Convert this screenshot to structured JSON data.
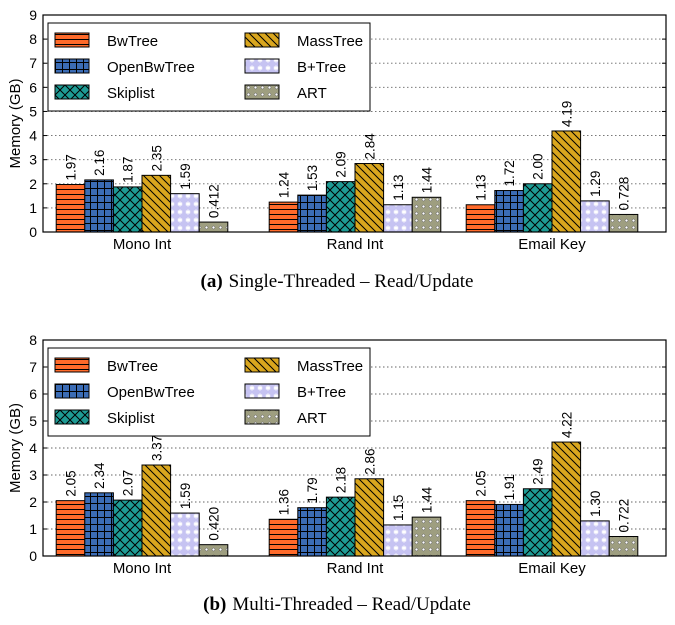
{
  "chart_data": [
    {
      "type": "bar",
      "caption_label": "(a)",
      "caption_text": "Single-Threaded – Read/Update",
      "ylabel": "Memory (GB)",
      "xlabel": "",
      "ylim": [
        0,
        9
      ],
      "yticks": [
        0,
        1,
        2,
        3,
        4,
        5,
        6,
        7,
        8,
        9
      ],
      "grid": "horizontal-dotted",
      "legend_placement": "top-left",
      "categories": [
        "Mono Int",
        "Rand Int",
        "Email Key"
      ],
      "series": [
        {
          "name": "BwTree",
          "color": "#ff6a2a",
          "pattern": "hlines",
          "values": [
            1.97,
            1.24,
            1.13
          ],
          "labels": [
            "1.97",
            "1.24",
            "1.13"
          ]
        },
        {
          "name": "OpenBwTree",
          "color": "#3b6cb5",
          "pattern": "grid",
          "values": [
            2.16,
            1.53,
            1.72
          ],
          "labels": [
            "2.16",
            "1.53",
            "1.72"
          ]
        },
        {
          "name": "Skiplist",
          "color": "#1e9b94",
          "pattern": "cross",
          "values": [
            1.87,
            2.09,
            2.0
          ],
          "labels": [
            "1.87",
            "2.09",
            "2.00"
          ]
        },
        {
          "name": "MassTree",
          "color": "#d9a61e",
          "pattern": "diag",
          "values": [
            2.35,
            2.84,
            4.19
          ],
          "labels": [
            "2.35",
            "2.84",
            "4.19"
          ]
        },
        {
          "name": "B+Tree",
          "color": "#c6c3f2",
          "pattern": "stars",
          "values": [
            1.59,
            1.13,
            1.29
          ],
          "labels": [
            "1.59",
            "1.13",
            "1.29"
          ]
        },
        {
          "name": "ART",
          "color": "#9e9e80",
          "pattern": "dots",
          "values": [
            0.412,
            1.44,
            0.728
          ],
          "labels": [
            "0.412",
            "1.44",
            "0.728"
          ]
        }
      ]
    },
    {
      "type": "bar",
      "caption_label": "(b)",
      "caption_text": "Multi-Threaded – Read/Update",
      "ylabel": "Memory (GB)",
      "xlabel": "",
      "ylim": [
        0,
        8
      ],
      "yticks": [
        0,
        1,
        2,
        3,
        4,
        5,
        6,
        7,
        8
      ],
      "grid": "horizontal-dotted",
      "legend_placement": "top-left",
      "categories": [
        "Mono Int",
        "Rand Int",
        "Email Key"
      ],
      "series": [
        {
          "name": "BwTree",
          "color": "#ff6a2a",
          "pattern": "hlines",
          "values": [
            2.05,
            1.36,
            2.05
          ],
          "labels": [
            "2.05",
            "1.36",
            "2.05"
          ]
        },
        {
          "name": "OpenBwTree",
          "color": "#3b6cb5",
          "pattern": "grid",
          "values": [
            2.34,
            1.79,
            1.91
          ],
          "labels": [
            "2.34",
            "1.79",
            "1.91"
          ]
        },
        {
          "name": "Skiplist",
          "color": "#1e9b94",
          "pattern": "cross",
          "values": [
            2.07,
            2.18,
            2.49
          ],
          "labels": [
            "2.07",
            "2.18",
            "2.49"
          ]
        },
        {
          "name": "MassTree",
          "color": "#d9a61e",
          "pattern": "diag",
          "values": [
            3.37,
            2.86,
            4.22
          ],
          "labels": [
            "3.37",
            "2.86",
            "4.22"
          ]
        },
        {
          "name": "B+Tree",
          "color": "#c6c3f2",
          "pattern": "stars",
          "values": [
            1.59,
            1.15,
            1.3
          ],
          "labels": [
            "1.59",
            "1.15",
            "1.30"
          ]
        },
        {
          "name": "ART",
          "color": "#9e9e80",
          "pattern": "dots",
          "values": [
            0.42,
            1.44,
            0.722
          ],
          "labels": [
            "0.420",
            "1.44",
            "0.722"
          ]
        }
      ]
    }
  ]
}
